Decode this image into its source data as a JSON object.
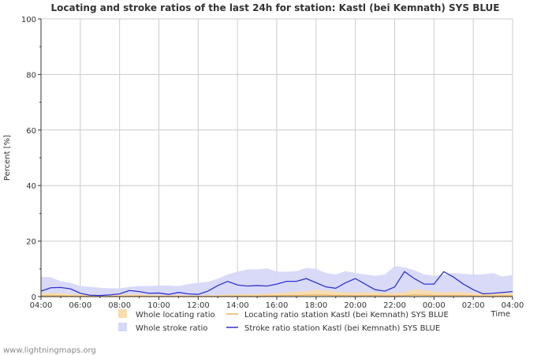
{
  "watermark": "www.lightningmaps.org",
  "colors": {
    "whole_locating": "#f8dcae",
    "locating_line": "#e8b060",
    "whole_stroke": "#d6d8f8",
    "stroke_line": "#3333cc",
    "grid": "#cccccc",
    "axis": "#333333"
  },
  "chart_data": {
    "type": "area",
    "title": "Locating and stroke ratios of the last 24h for station: Kastl (bei Kemnath) SYS BLUE",
    "xlabel": "Time",
    "ylabel": "Percent   [%]",
    "ylim": [
      0,
      100
    ],
    "yticks": [
      0,
      20,
      40,
      60,
      80,
      100
    ],
    "xlim": [
      0,
      24
    ],
    "xticks": [
      {
        "x": 0,
        "label": "04:00"
      },
      {
        "x": 2,
        "label": "06:00"
      },
      {
        "x": 4,
        "label": "08:00"
      },
      {
        "x": 6,
        "label": "10:00"
      },
      {
        "x": 8,
        "label": "12:00"
      },
      {
        "x": 10,
        "label": "14:00"
      },
      {
        "x": 12,
        "label": "16:00"
      },
      {
        "x": 14,
        "label": "18:00"
      },
      {
        "x": 16,
        "label": "20:00"
      },
      {
        "x": 18,
        "label": "22:00"
      },
      {
        "x": 20,
        "label": "00:00"
      },
      {
        "x": 22,
        "label": "02:00"
      },
      {
        "x": 24,
        "label": "04:00"
      }
    ],
    "grid": true,
    "x": [
      0,
      0.5,
      1,
      1.5,
      2,
      2.5,
      3,
      3.5,
      4,
      4.5,
      5,
      5.5,
      6,
      6.5,
      7,
      7.5,
      8,
      8.5,
      9,
      9.5,
      10,
      10.5,
      11,
      11.5,
      12,
      12.5,
      13,
      13.5,
      14,
      14.5,
      15,
      15.5,
      16,
      16.5,
      17,
      17.5,
      18,
      18.5,
      19,
      19.5,
      20,
      20.5,
      21,
      21.5,
      22,
      22.5,
      23,
      23.5,
      24
    ],
    "series": [
      {
        "name": "Whole locating ratio",
        "kind": "area",
        "values": [
          1.2,
          1.3,
          1.2,
          1.0,
          0.8,
          0.6,
          0.5,
          0.5,
          0.6,
          0.8,
          0.8,
          0.7,
          0.6,
          0.5,
          0.6,
          0.5,
          0.4,
          0.5,
          0.6,
          0.8,
          0.9,
          0.9,
          1.0,
          1.1,
          1.3,
          1.5,
          1.8,
          2.0,
          2.4,
          2.2,
          1.8,
          1.6,
          1.5,
          1.6,
          1.5,
          1.3,
          1.4,
          1.6,
          2.6,
          2.4,
          1.8,
          1.6,
          1.8,
          1.6,
          1.3,
          1.0,
          1.0,
          1.3,
          1.2
        ]
      },
      {
        "name": "Locating ratio station Kastl (bei Kemnath) SYS BLUE",
        "kind": "line",
        "values": [
          0.3,
          0.3,
          0.3,
          0.2,
          0.2,
          0.1,
          0.1,
          0.1,
          0.1,
          0.2,
          0.2,
          0.1,
          0.1,
          0.1,
          0.1,
          0.1,
          0.1,
          0.1,
          0.1,
          0.2,
          0.2,
          0.2,
          0.2,
          0.3,
          0.3,
          0.4,
          0.4,
          0.5,
          0.6,
          0.5,
          0.4,
          0.4,
          0.3,
          0.4,
          0.4,
          0.3,
          0.3,
          0.4,
          0.6,
          0.5,
          0.4,
          0.4,
          0.4,
          0.4,
          0.3,
          0.2,
          0.2,
          0.3,
          0.3
        ]
      },
      {
        "name": "Whole stroke ratio",
        "kind": "area",
        "values": [
          7.2,
          7.0,
          5.5,
          5.0,
          3.8,
          3.5,
          3.2,
          3.0,
          3.0,
          3.5,
          3.8,
          3.8,
          4.0,
          4.0,
          3.8,
          4.5,
          5.0,
          5.3,
          6.5,
          8.0,
          9.0,
          9.8,
          9.8,
          10.2,
          9.0,
          9.0,
          9.2,
          10.3,
          10.0,
          8.5,
          8.0,
          9.2,
          8.5,
          8.0,
          7.5,
          8.0,
          11.0,
          10.5,
          9.5,
          8.0,
          7.5,
          8.0,
          8.5,
          8.2,
          8.0,
          8.0,
          8.5,
          7.2,
          7.8
        ]
      },
      {
        "name": "Stroke ratio station Kastl (bei Kemnath) SYS BLUE",
        "kind": "line",
        "values": [
          2.0,
          3.2,
          3.3,
          2.8,
          1.2,
          0.5,
          0.4,
          0.6,
          1.0,
          2.2,
          1.8,
          1.2,
          1.3,
          0.8,
          1.5,
          1.0,
          0.8,
          2.0,
          4.0,
          5.5,
          4.2,
          3.8,
          4.0,
          3.8,
          4.5,
          5.5,
          5.5,
          6.5,
          5.0,
          3.5,
          3.0,
          5.0,
          6.5,
          4.5,
          2.5,
          2.0,
          3.5,
          9.0,
          6.5,
          4.5,
          4.5,
          9.0,
          7.0,
          4.5,
          2.5,
          1.0,
          1.2,
          1.5,
          1.8
        ]
      }
    ],
    "legend": {
      "placement": "bottom",
      "items": [
        {
          "label": "Whole locating ratio",
          "style": "box",
          "color": "#f8dcae"
        },
        {
          "label": "Locating ratio station Kastl (bei Kemnath) SYS BLUE",
          "style": "line",
          "color": "#e8b060"
        },
        {
          "label": "Whole stroke ratio",
          "style": "box",
          "color": "#d6d8f8"
        },
        {
          "label": "Stroke ratio station Kastl (bei Kemnath) SYS BLUE",
          "style": "line",
          "color": "#3333cc"
        }
      ]
    }
  }
}
